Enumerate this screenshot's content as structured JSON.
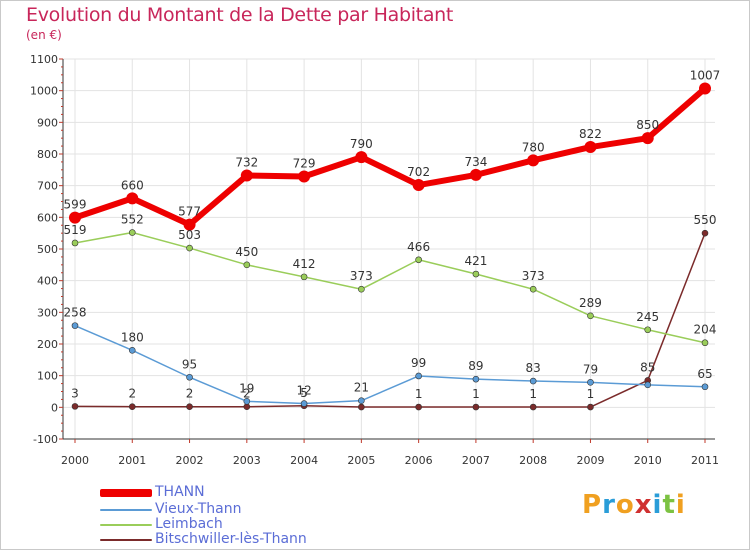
{
  "header": {
    "title": "Evolution du Montant de la Dette par Habitant",
    "unit": "(en €)"
  },
  "logo": {
    "text": "Proxiti",
    "colors": [
      "#f0a020",
      "#2a9dd8",
      "#f0a020",
      "#d03030",
      "#2a9dd8",
      "#7cc242",
      "#f0a020"
    ]
  },
  "chart_data": {
    "type": "line",
    "title": "Evolution du Montant de la Dette par Habitant",
    "ylabel": "(en €)",
    "xlabel": "",
    "x": [
      "2000",
      "2001",
      "2002",
      "2003",
      "2004",
      "2005",
      "2006",
      "2007",
      "2008",
      "2009",
      "2010",
      "2011"
    ],
    "ylim": [
      -100,
      1100
    ],
    "yticks": [
      "-100",
      "0",
      "100",
      "200",
      "300",
      "400",
      "500",
      "600",
      "700",
      "800",
      "900",
      "1000",
      "1100"
    ],
    "grid": true,
    "legend_position": "bottom-left",
    "series": [
      {
        "name": "THANN",
        "color": "#ee0000",
        "values": [
          599,
          660,
          577,
          732,
          729,
          790,
          702,
          734,
          780,
          822,
          850,
          1007
        ],
        "labels": [
          "599",
          "660",
          "577",
          "732",
          "729",
          "790",
          "702",
          "734",
          "780",
          "822",
          "850",
          "1007"
        ]
      },
      {
        "name": "Vieux-Thann",
        "color": "#5b9bd5",
        "values": [
          258,
          180,
          95,
          19,
          12,
          21,
          99,
          89,
          83,
          79,
          71,
          65
        ],
        "labels": [
          "258",
          "180",
          "95",
          "19",
          "12",
          "21",
          "99",
          "89",
          "83",
          "79",
          "",
          "65"
        ]
      },
      {
        "name": "Leimbach",
        "color": "#9acd5a",
        "values": [
          519,
          552,
          503,
          450,
          412,
          373,
          466,
          421,
          373,
          289,
          245,
          204
        ],
        "labels": [
          "519",
          "552",
          "503",
          "450",
          "412",
          "373",
          "466",
          "421",
          "373",
          "289",
          "245",
          "204"
        ]
      },
      {
        "name": "Bitschwiller-lès-Thann",
        "color": "#7b2b2b",
        "values": [
          3,
          2,
          2,
          2,
          5,
          1,
          1,
          1,
          1,
          1,
          85,
          550
        ],
        "labels": [
          "3",
          "2",
          "2",
          "2",
          "5",
          "",
          "1",
          "1",
          "1",
          "1",
          "85",
          "550"
        ]
      }
    ]
  }
}
